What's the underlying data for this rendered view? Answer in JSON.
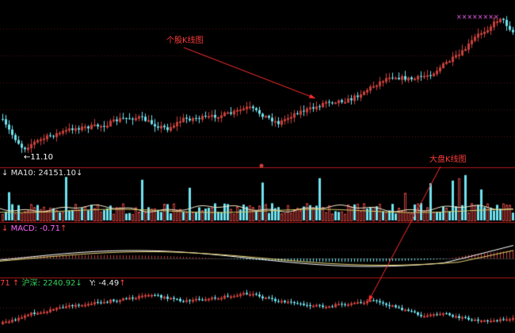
{
  "colors": {
    "background": "#000000",
    "up": "#c9413c",
    "down": "#6fe3ef",
    "divider": "#b01818",
    "grid": "#5a1414",
    "arrow": "#ff2f2f",
    "ma_line": "#f1e6c6",
    "dif_line": "#ffffff",
    "dea_line": "#e8d470",
    "marker": "#ff6bff"
  },
  "icons": {
    "low_marker": "left-arrow",
    "volume_marker": "down-arrow",
    "macd_marker": "up-arrow"
  },
  "price_panel": {
    "low_label": "11.10",
    "trend": "up",
    "annotation": "个股K线图"
  },
  "volume_panel": {
    "label_prefix": "MA10:",
    "ma10_value": "24151.10"
  },
  "macd_panel": {
    "label": "MACD: -0.71"
  },
  "index_panel": {
    "left_value": "71",
    "index_name": "沪深:",
    "index_value": "2240.92",
    "y_label": "Y: -4.49",
    "annotation": "大盘K线图"
  }
}
